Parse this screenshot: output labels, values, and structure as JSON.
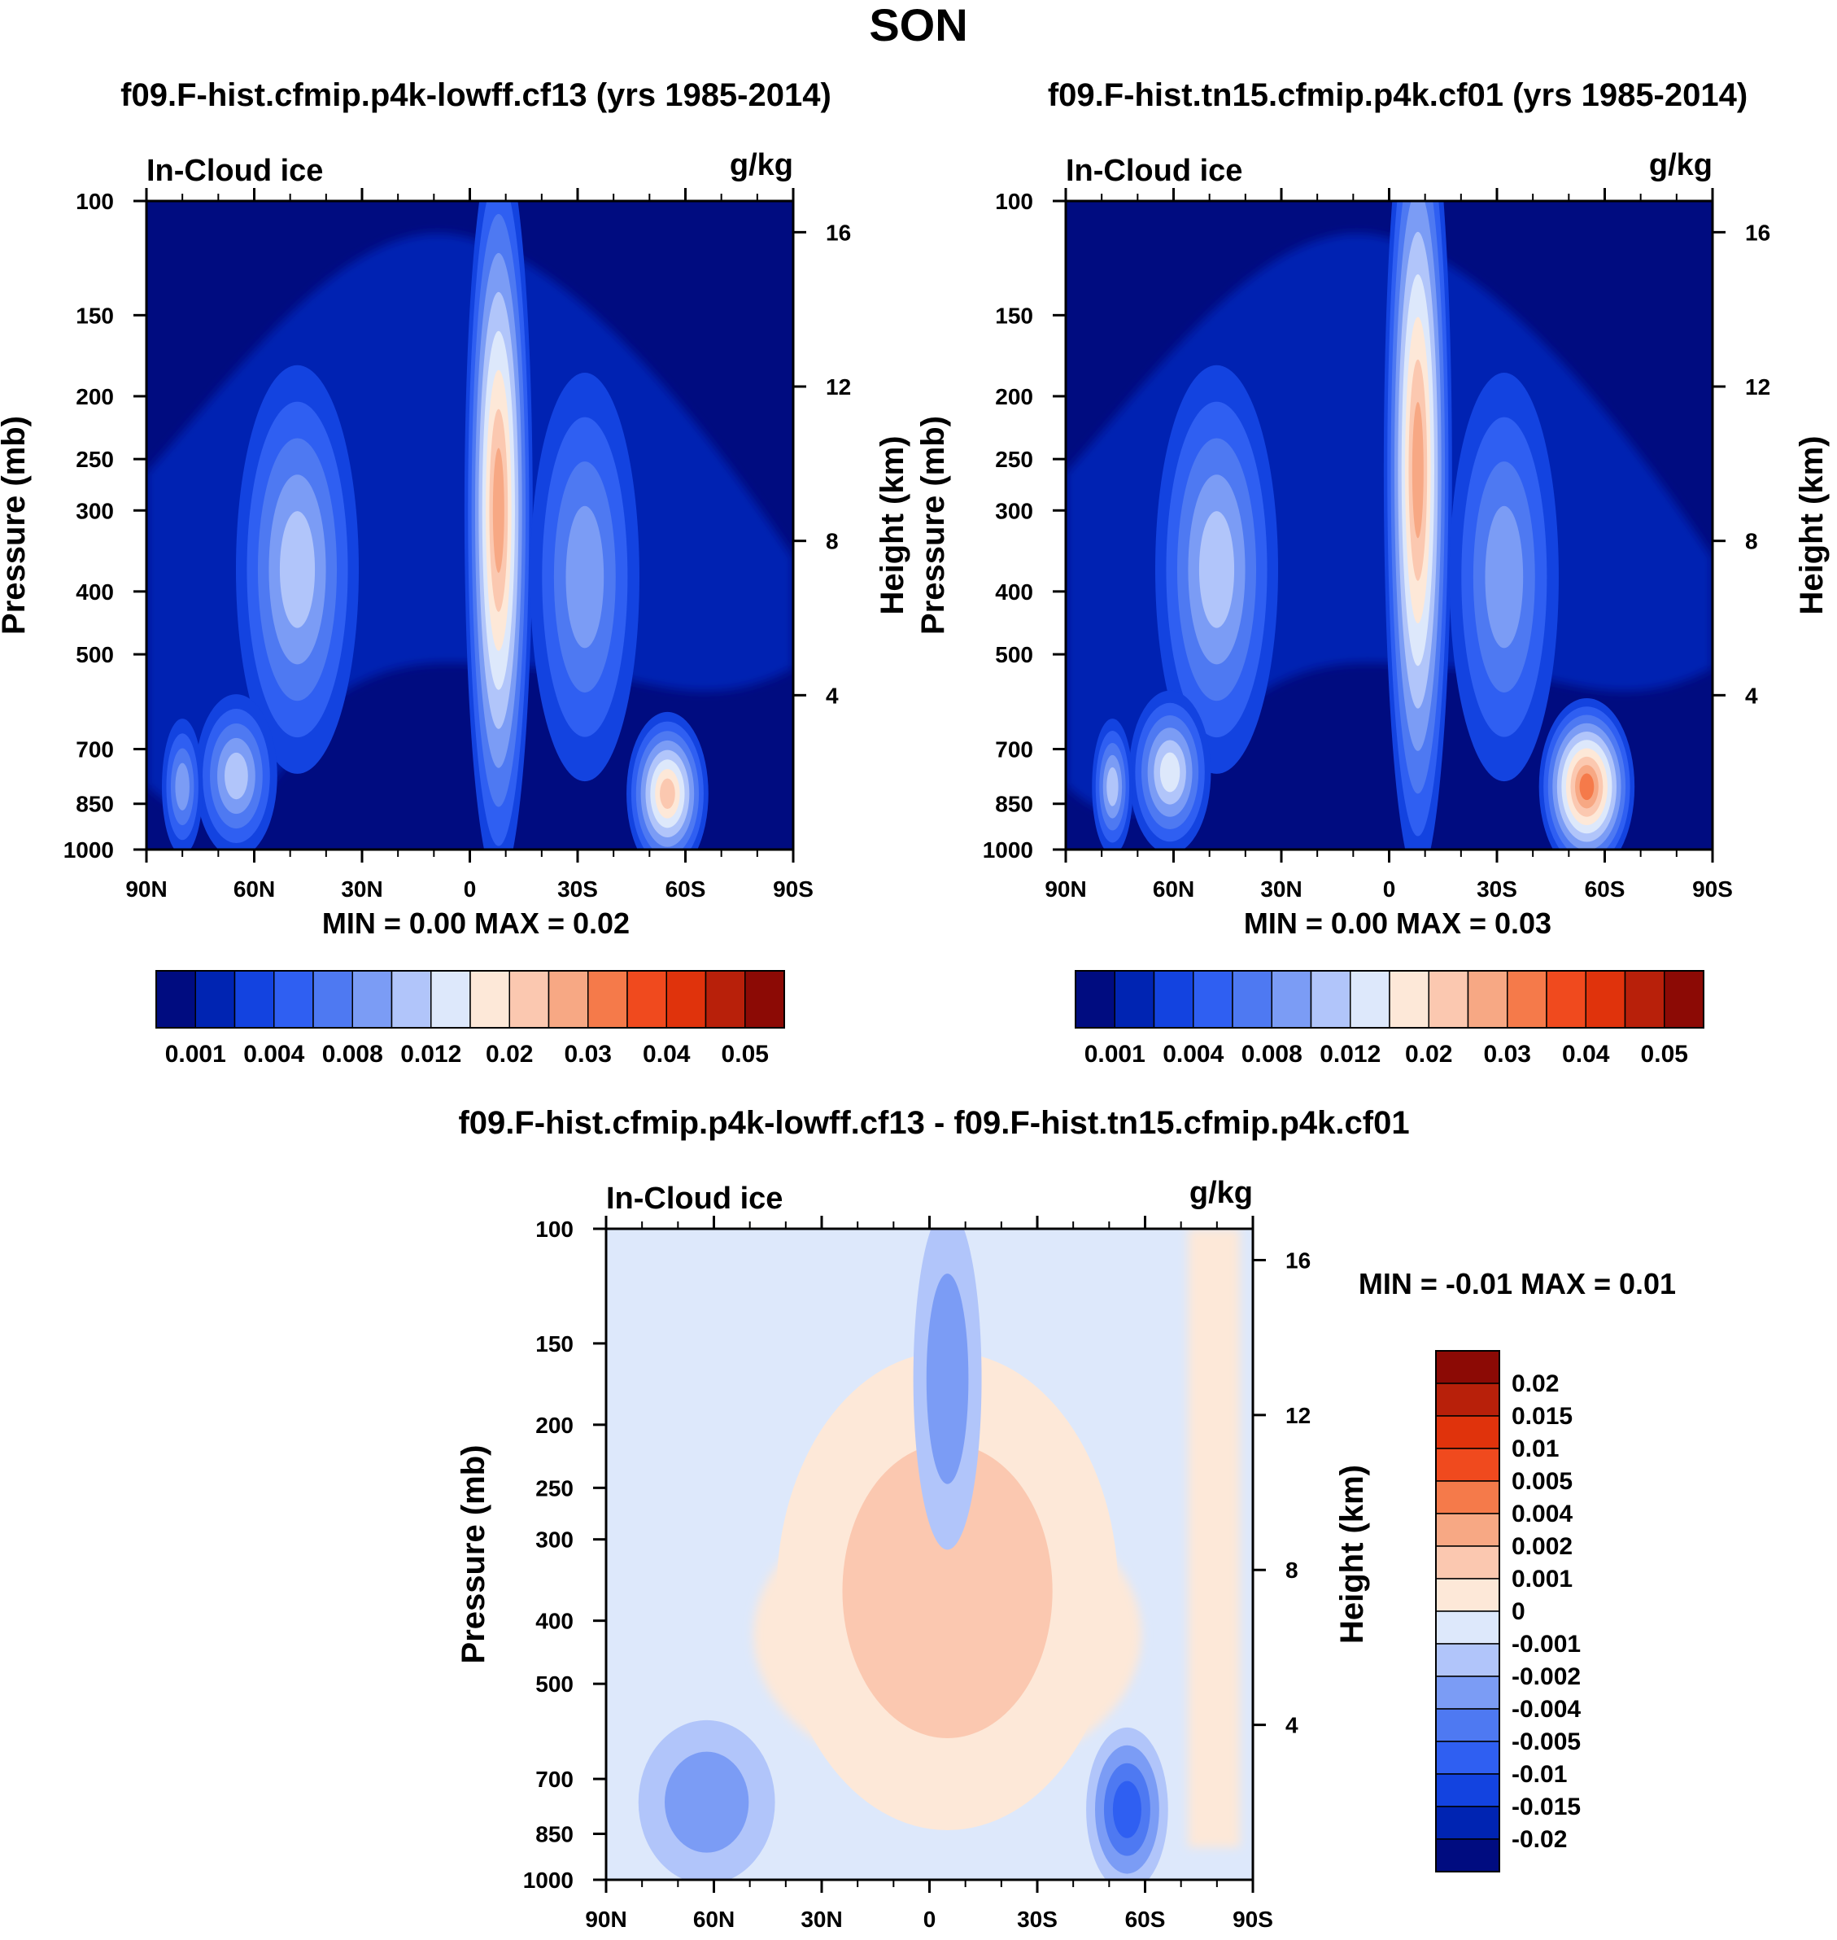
{
  "figure_title": "SON",
  "chart_data": [
    {
      "type": "heatmap",
      "title": "f09.F-hist.cfmip.p4k-lowff.cf13 (yrs 1985-2014)",
      "left_label": "In-Cloud ice",
      "right_label": "g/kg",
      "ylabel": "Pressure (mb)",
      "ylabel_right": "Height (km)",
      "x_ticks": [
        "90N",
        "60N",
        "30N",
        "0",
        "30S",
        "60S",
        "90S"
      ],
      "y_ticks": [
        "100",
        "150",
        "200",
        "250",
        "300",
        "400",
        "500",
        "700",
        "850",
        "1000"
      ],
      "y2_ticks": [
        "16",
        "12",
        "8",
        "4"
      ],
      "xlim": [
        90,
        -90
      ],
      "ylim": [
        1000,
        100
      ],
      "y_scale": "log",
      "stats": "MIN =   0.00  MAX =   0.02",
      "min": 0.0,
      "max": 0.02,
      "colorbar": "horizontal",
      "colorbar_labels": [
        "0.001",
        "0.004",
        "0.008",
        "0.012",
        "0.02",
        "0.03",
        "0.04",
        "0.05"
      ],
      "contour_levels": [
        0.001,
        0.002,
        0.004,
        0.006,
        0.008,
        0.01,
        0.012,
        0.015,
        0.02,
        0.025,
        0.03,
        0.035,
        0.04,
        0.045,
        0.05
      ],
      "features": [
        {
          "lat": -8,
          "p": 300,
          "level": 10,
          "spread_lat": 5,
          "spread_p": 0.55
        },
        {
          "lat": 48,
          "p": 370,
          "level": 6,
          "spread_lat": 9,
          "spread_p": 0.3
        },
        {
          "lat": -32,
          "p": 380,
          "level": 5,
          "spread_lat": 8,
          "spread_p": 0.3
        },
        {
          "lat": 65,
          "p": 770,
          "level": 6,
          "spread_lat": 6,
          "spread_p": 0.12
        },
        {
          "lat": 80,
          "p": 800,
          "level": 5,
          "spread_lat": 3,
          "spread_p": 0.1
        },
        {
          "lat": -55,
          "p": 820,
          "level": 9,
          "spread_lat": 6,
          "spread_p": 0.12
        }
      ]
    },
    {
      "type": "heatmap",
      "title": "f09.F-hist.tn15.cfmip.p4k.cf01 (yrs 1985-2014)",
      "left_label": "In-Cloud ice",
      "right_label": "g/kg",
      "ylabel": "Pressure (mb)",
      "ylabel_right": "Height (km)",
      "x_ticks": [
        "90N",
        "60N",
        "30N",
        "0",
        "30S",
        "60S",
        "90S"
      ],
      "y_ticks": [
        "100",
        "150",
        "200",
        "250",
        "300",
        "400",
        "500",
        "700",
        "850",
        "1000"
      ],
      "y2_ticks": [
        "16",
        "12",
        "8",
        "4"
      ],
      "xlim": [
        90,
        -90
      ],
      "ylim": [
        1000,
        100
      ],
      "y_scale": "log",
      "stats": "MIN =   0.00  MAX =   0.03",
      "min": 0.0,
      "max": 0.03,
      "colorbar": "horizontal",
      "colorbar_labels": [
        "0.001",
        "0.004",
        "0.008",
        "0.012",
        "0.02",
        "0.03",
        "0.04",
        "0.05"
      ],
      "contour_levels": [
        0.001,
        0.002,
        0.004,
        0.006,
        0.008,
        0.01,
        0.012,
        0.015,
        0.02,
        0.025,
        0.03,
        0.035,
        0.04,
        0.045,
        0.05
      ],
      "features": [
        {
          "lat": -8,
          "p": 260,
          "level": 10,
          "spread_lat": 5,
          "spread_p": 0.6
        },
        {
          "lat": 48,
          "p": 370,
          "level": 6,
          "spread_lat": 9,
          "spread_p": 0.3
        },
        {
          "lat": -32,
          "p": 380,
          "level": 5,
          "spread_lat": 8,
          "spread_p": 0.3
        },
        {
          "lat": 61,
          "p": 760,
          "level": 7,
          "spread_lat": 6,
          "spread_p": 0.12
        },
        {
          "lat": 77,
          "p": 800,
          "level": 6,
          "spread_lat": 3,
          "spread_p": 0.1
        },
        {
          "lat": -55,
          "p": 800,
          "level": 11,
          "spread_lat": 7,
          "spread_p": 0.13
        }
      ]
    },
    {
      "type": "heatmap",
      "title": "f09.F-hist.cfmip.p4k-lowff.cf13 - f09.F-hist.tn15.cfmip.p4k.cf01",
      "left_label": "In-Cloud ice",
      "right_label": "g/kg",
      "ylabel": "Pressure (mb)",
      "ylabel_right": "Height (km)",
      "x_ticks": [
        "90N",
        "60N",
        "30N",
        "0",
        "30S",
        "60S",
        "90S"
      ],
      "y_ticks": [
        "100",
        "150",
        "200",
        "250",
        "300",
        "400",
        "500",
        "700",
        "850",
        "1000"
      ],
      "y2_ticks": [
        "16",
        "12",
        "8",
        "4"
      ],
      "xlim": [
        90,
        -90
      ],
      "ylim": [
        1000,
        100
      ],
      "y_scale": "log",
      "stats": "MIN =  -0.01  MAX =   0.01",
      "min": -0.01,
      "max": 0.01,
      "colorbar": "vertical",
      "colorbar_labels": [
        "0.02",
        "0.015",
        "0.01",
        "0.005",
        "0.004",
        "0.002",
        "0.001",
        "0",
        "-0.001",
        "-0.002",
        "-0.004",
        "-0.005",
        "-0.01",
        "-0.015",
        "-0.02"
      ],
      "contour_levels": [
        -0.02,
        -0.015,
        -0.01,
        -0.005,
        -0.004,
        -0.002,
        -0.001,
        0,
        0.001,
        0.002,
        0.004,
        0.005,
        0.01,
        0.015,
        0.02
      ],
      "features": [
        {
          "lat": -10,
          "p": 320,
          "level": 0.005,
          "spread_lat": 6,
          "spread_p": 0.22
        },
        {
          "lat": -5,
          "p": 360,
          "level": 0.002,
          "spread_lat": 25,
          "spread_p": 0.35
        },
        {
          "lat": -5,
          "p": 170,
          "level": -0.002,
          "spread_lat": 5,
          "spread_p": 0.25
        },
        {
          "lat": 62,
          "p": 760,
          "level": -0.002,
          "spread_lat": 10,
          "spread_p": 0.12
        },
        {
          "lat": -55,
          "p": 780,
          "level": -0.005,
          "spread_lat": 6,
          "spread_p": 0.12
        }
      ]
    }
  ],
  "colors": {
    "seq_palette": [
      "#000c80",
      "#0024b2",
      "#1343e0",
      "#2f5ff2",
      "#4e79f2",
      "#7b9cf5",
      "#b1c5fa",
      "#dde8fb",
      "#fde8d8",
      "#fbc8b0",
      "#f7a884",
      "#f57a4a",
      "#f04a1e",
      "#e0330c",
      "#b8200a",
      "#8c0a05"
    ],
    "diff_palette": [
      "#000c80",
      "#0024b2",
      "#1343e0",
      "#2f5ff2",
      "#4e79f2",
      "#7b9cf5",
      "#b1c5fa",
      "#dde8fb",
      "#fde8d8",
      "#fbc8b0",
      "#f7a884",
      "#f57a4a",
      "#f04a1e",
      "#e0330c",
      "#b8200a",
      "#8c0a05"
    ]
  }
}
